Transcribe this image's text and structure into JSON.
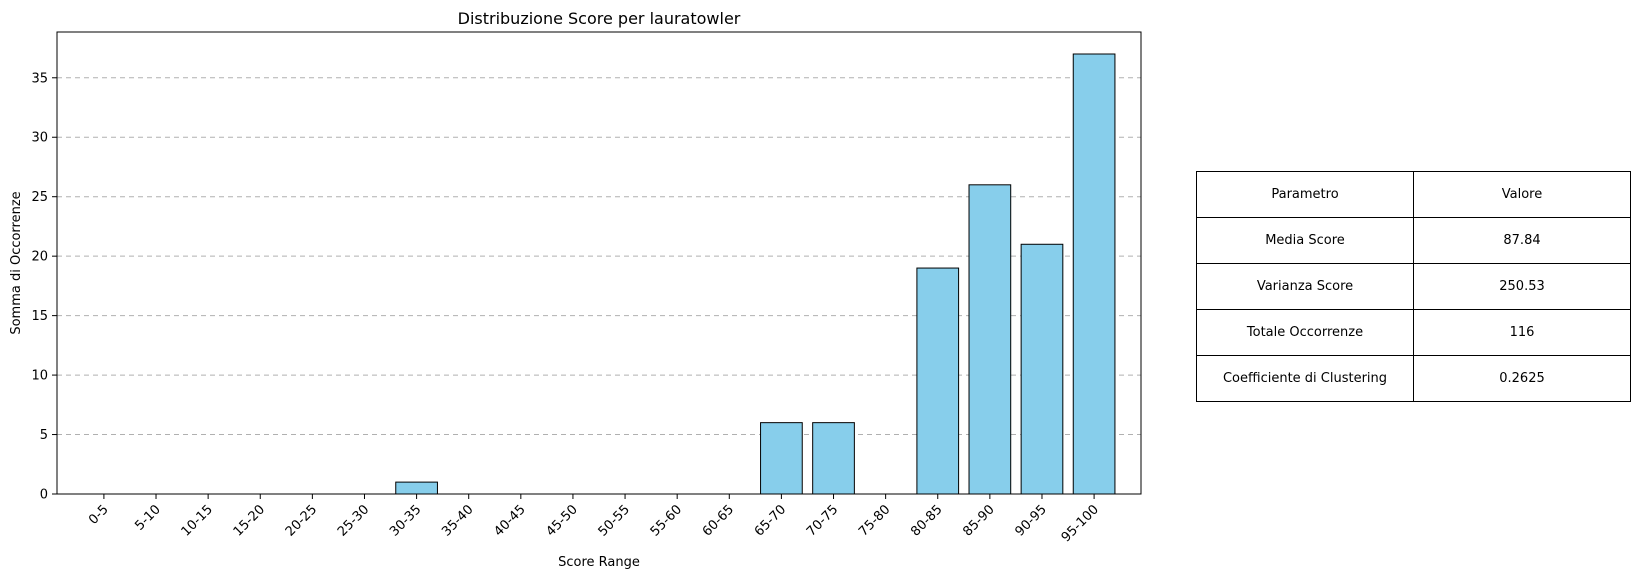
{
  "chart_data": {
    "type": "bar",
    "title": "Distribuzione Score per lauratowler",
    "xlabel": "Score Range",
    "ylabel": "Somma di Occorrenze",
    "categories": [
      "0-5",
      "5-10",
      "10-15",
      "15-20",
      "20-25",
      "25-30",
      "30-35",
      "35-40",
      "40-45",
      "45-50",
      "50-55",
      "55-60",
      "60-65",
      "65-70",
      "70-75",
      "75-80",
      "80-85",
      "85-90",
      "90-95",
      "95-100"
    ],
    "values": [
      0,
      0,
      0,
      0,
      0,
      0,
      1,
      0,
      0,
      0,
      0,
      0,
      0,
      6,
      6,
      0,
      19,
      26,
      21,
      37
    ],
    "ylim": [
      0,
      38.85
    ],
    "yticks": [
      0,
      5,
      10,
      15,
      20,
      25,
      30,
      35
    ],
    "grid": "y-dashed",
    "bar_color": "#87CEEB",
    "edge_color": "#000000"
  },
  "table": {
    "header": [
      "Parametro",
      "Valore"
    ],
    "rows": [
      [
        "Media Score",
        "87.84"
      ],
      [
        "Varianza Score",
        "250.53"
      ],
      [
        "Totale Occorrenze",
        "116"
      ],
      [
        "Coefficiente di Clustering",
        "0.2625"
      ]
    ]
  }
}
